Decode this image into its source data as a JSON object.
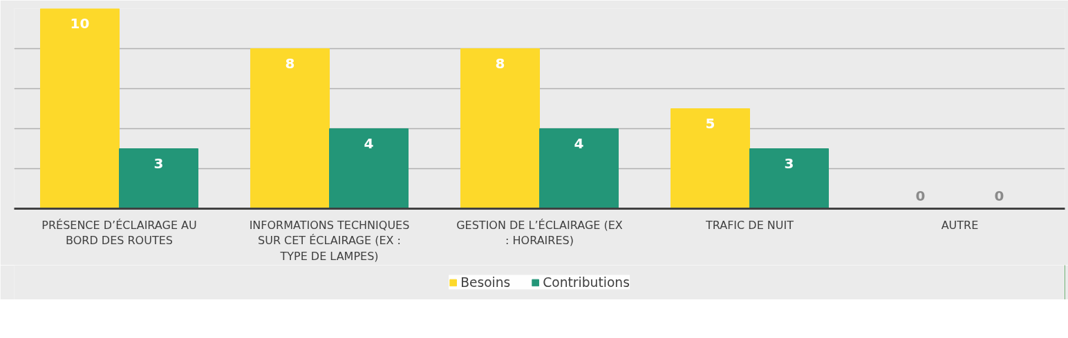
{
  "chart_data": {
    "type": "bar",
    "categories": [
      "PRÉSENCE D’ÉCLAIRAGE AU BORD DES ROUTES",
      "INFORMATIONS TECHNIQUES SUR CET ÉCLAIRAGE (EX : TYPE DE LAMPES)",
      "GESTION DE L’ÉCLAIRAGE (EX : HORAIRES)",
      "TRAFIC DE NUIT",
      "AUTRE"
    ],
    "series": [
      {
        "name": "Besoins",
        "color": "#fdd92a",
        "values": [
          10,
          8,
          8,
          5,
          0
        ]
      },
      {
        "name": "Contributions",
        "color": "#239678",
        "values": [
          3,
          4,
          4,
          3,
          0
        ]
      }
    ],
    "ylim": [
      0,
      10
    ],
    "yticks": [
      {
        "value": 0,
        "label": null
      },
      {
        "value": 2,
        "label": null
      },
      {
        "value": 4,
        "label": null
      },
      {
        "value": 6,
        "label": null
      },
      {
        "value": 8,
        "label": null
      },
      {
        "value": 10,
        "label": null
      }
    ],
    "tick_labels": "x",
    "grid": "y",
    "data_labels": true,
    "legend": "bottom"
  }
}
